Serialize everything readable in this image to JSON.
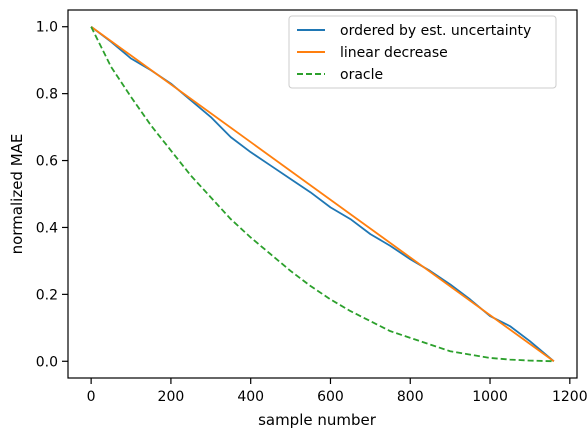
{
  "chart_data": {
    "type": "line",
    "xlabel": "sample number",
    "ylabel": "normalized MAE",
    "xlim": [
      -58,
      1218
    ],
    "ylim": [
      -0.05,
      1.05
    ],
    "xticks": [
      0,
      200,
      400,
      600,
      800,
      1000,
      1200
    ],
    "yticks": [
      0.0,
      0.2,
      0.4,
      0.6,
      0.8,
      1.0
    ],
    "xtick_labels": [
      "0",
      "200",
      "400",
      "600",
      "800",
      "1000",
      "1200"
    ],
    "ytick_labels": [
      "0.0",
      "0.2",
      "0.4",
      "0.6",
      "0.8",
      "1.0"
    ],
    "grid": false,
    "legend_position": "top-right",
    "series": [
      {
        "name": "ordered by est. uncertainty",
        "color": "#1f77b4",
        "dash": "solid",
        "x": [
          0,
          50,
          100,
          150,
          200,
          250,
          300,
          350,
          400,
          450,
          500,
          550,
          600,
          650,
          700,
          750,
          800,
          850,
          900,
          950,
          1000,
          1050,
          1100,
          1160
        ],
        "y": [
          1.0,
          0.955,
          0.905,
          0.87,
          0.83,
          0.78,
          0.73,
          0.67,
          0.625,
          0.585,
          0.545,
          0.505,
          0.46,
          0.425,
          0.38,
          0.345,
          0.305,
          0.27,
          0.23,
          0.185,
          0.135,
          0.105,
          0.06,
          0.0
        ]
      },
      {
        "name": "linear decrease",
        "color": "#ff7f0e",
        "dash": "solid",
        "x": [
          0,
          1160
        ],
        "y": [
          1.0,
          0.0
        ]
      },
      {
        "name": "oracle",
        "color": "#2ca02c",
        "dash": "dashed",
        "x": [
          0,
          50,
          100,
          150,
          200,
          250,
          300,
          350,
          400,
          450,
          500,
          550,
          600,
          650,
          700,
          750,
          800,
          850,
          900,
          950,
          1000,
          1050,
          1100,
          1160
        ],
        "y": [
          1.0,
          0.88,
          0.79,
          0.705,
          0.63,
          0.555,
          0.49,
          0.425,
          0.37,
          0.32,
          0.27,
          0.225,
          0.185,
          0.15,
          0.12,
          0.09,
          0.07,
          0.05,
          0.03,
          0.02,
          0.01,
          0.005,
          0.002,
          0.0
        ]
      }
    ]
  }
}
